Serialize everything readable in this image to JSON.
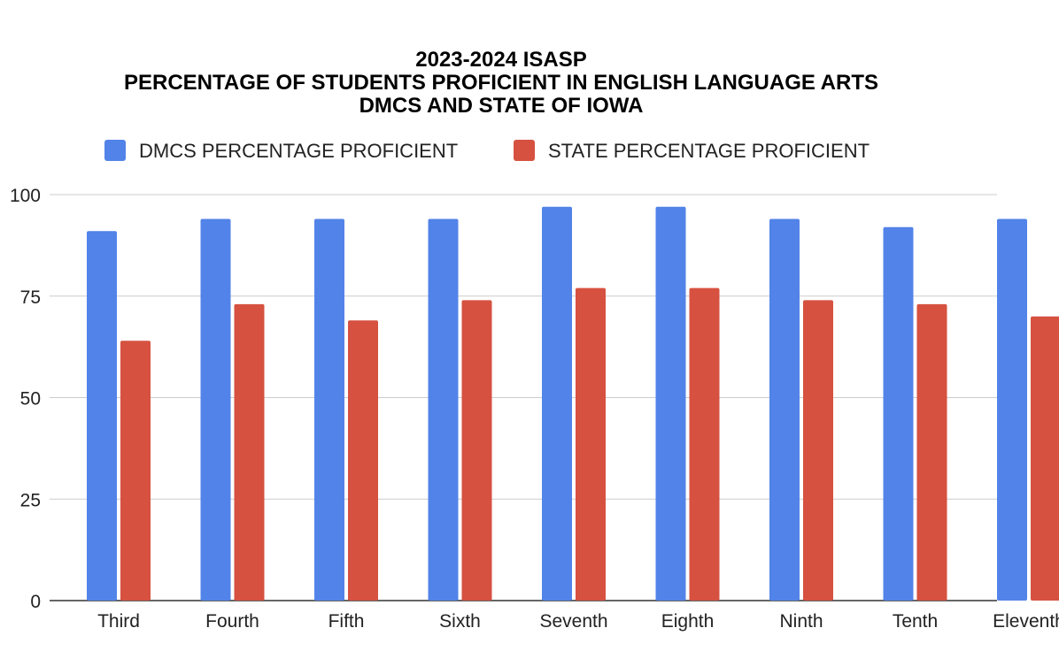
{
  "chart_data": {
    "type": "bar",
    "title": [
      "2023-2024 ISASP",
      "PERCENTAGE OF STUDENTS PROFICIENT IN ENGLISH LANGUAGE ARTS",
      "DMCS AND STATE OF IOWA"
    ],
    "categories": [
      "Third",
      "Fourth",
      "Fifth",
      "Sixth",
      "Seventh",
      "Eighth",
      "Ninth",
      "Tenth",
      "Eleventh"
    ],
    "series": [
      {
        "name": "DMCS PERCENTAGE PROFICIENT",
        "color": "#5283e8",
        "values": [
          91,
          94,
          94,
          94,
          97,
          97,
          94,
          92,
          94
        ]
      },
      {
        "name": "STATE PERCENTAGE PROFICIENT",
        "color": "#d65140",
        "values": [
          64,
          73,
          69,
          74,
          77,
          77,
          74,
          73,
          70
        ]
      }
    ],
    "yticks": [
      0,
      25,
      50,
      75,
      100
    ],
    "ylim": [
      0,
      100
    ],
    "xlabel": "",
    "ylabel": "",
    "grid": true,
    "legend_position": "top"
  }
}
